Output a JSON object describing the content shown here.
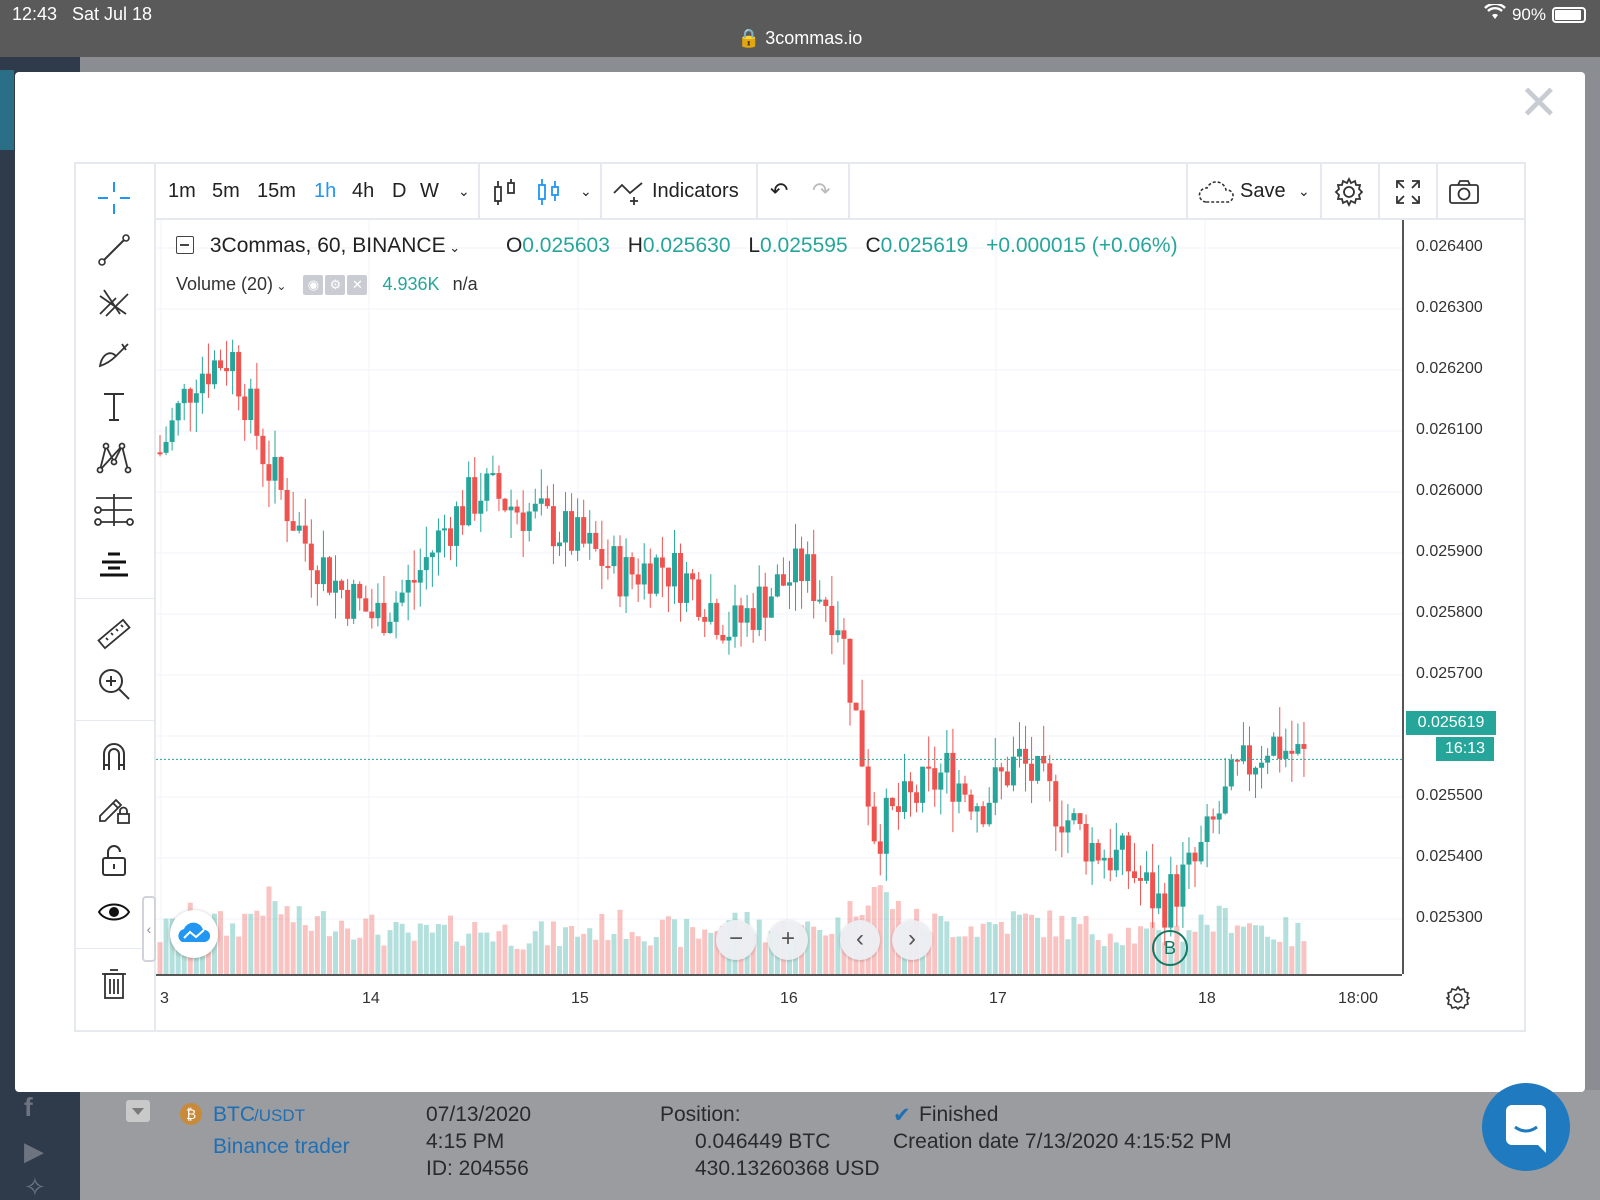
{
  "status_bar": {
    "time": "12:43",
    "date": "Sat Jul 18",
    "url": "3commas.io",
    "battery": "90%"
  },
  "modal": {
    "close_glyph": "✕"
  },
  "toolbar": {
    "intervals": [
      "1m",
      "5m",
      "15m",
      "1h",
      "4h",
      "D",
      "W"
    ],
    "active_interval": "1h",
    "indicators_label": "Indicators",
    "save_label": "Save"
  },
  "legend": {
    "symbol": "3Commas, 60, BINANCE",
    "o_label": "O",
    "o_value": "0.025603",
    "h_label": "H",
    "h_value": "0.025630",
    "l_label": "L",
    "l_value": "0.025595",
    "c_label": "C",
    "c_value": "0.025619",
    "change": "+0.000015 (+0.06%)",
    "volume_label": "Volume (20)",
    "volume_value": "4.936K",
    "volume_ma": "n/a"
  },
  "price_axis": {
    "labels": [
      "0.026400",
      "0.026300",
      "0.026200",
      "0.026100",
      "0.026000",
      "0.025900",
      "0.025800",
      "0.025700",
      "0.025500",
      "0.025400",
      "0.025300"
    ],
    "current_price": "0.025619",
    "countdown": "16:13"
  },
  "time_axis": {
    "labels": [
      "3",
      "14",
      "15",
      "16",
      "17",
      "18",
      "18:00"
    ]
  },
  "marker_label": "B",
  "chart_data": {
    "type": "candlestick",
    "title": "3Commas, 60, BINANCE",
    "ylim": [
      0.02522,
      0.02645
    ],
    "current_price": 0.025619,
    "x_ticks": [
      "3",
      "14",
      "15",
      "16",
      "17",
      "18",
      "18:00"
    ],
    "close_trace": [
      0.02612,
      0.02625,
      0.02628,
      0.0261,
      0.02598,
      0.0259,
      0.02585,
      0.0259,
      0.026,
      0.02606,
      0.02603,
      0.026,
      0.02596,
      0.02592,
      0.02594,
      0.0259,
      0.02583,
      0.02589,
      0.02593,
      0.02585,
      0.0255,
      0.02555,
      0.0256,
      0.02555,
      0.02562,
      0.02555,
      0.02548,
      0.02545,
      0.02538,
      0.02545,
      0.02558,
      0.02565,
      0.02562
    ],
    "volume_trace": [
      50,
      90,
      60,
      120,
      70,
      80,
      60,
      40,
      55,
      60,
      50,
      45,
      60,
      70,
      55,
      50,
      80,
      60,
      55,
      70,
      150,
      75,
      70,
      65,
      80,
      70,
      60,
      55,
      40,
      70,
      85,
      60,
      45
    ]
  },
  "background": {
    "pair_base": "BTC",
    "pair_quote": "/USDT",
    "bot_name": "Binance trader",
    "date": "07/13/2020",
    "time": "4:15 PM",
    "id": "ID: 204556",
    "position_label": "Position:",
    "position_btc": "0.046449 BTC",
    "position_usd": "430.13260368 USD",
    "status": "Finished",
    "creation": "Creation date 7/13/2020 4:15:52 PM"
  },
  "colors": {
    "up": "#26a69a",
    "down": "#ef5350",
    "accent": "#2196f3"
  }
}
